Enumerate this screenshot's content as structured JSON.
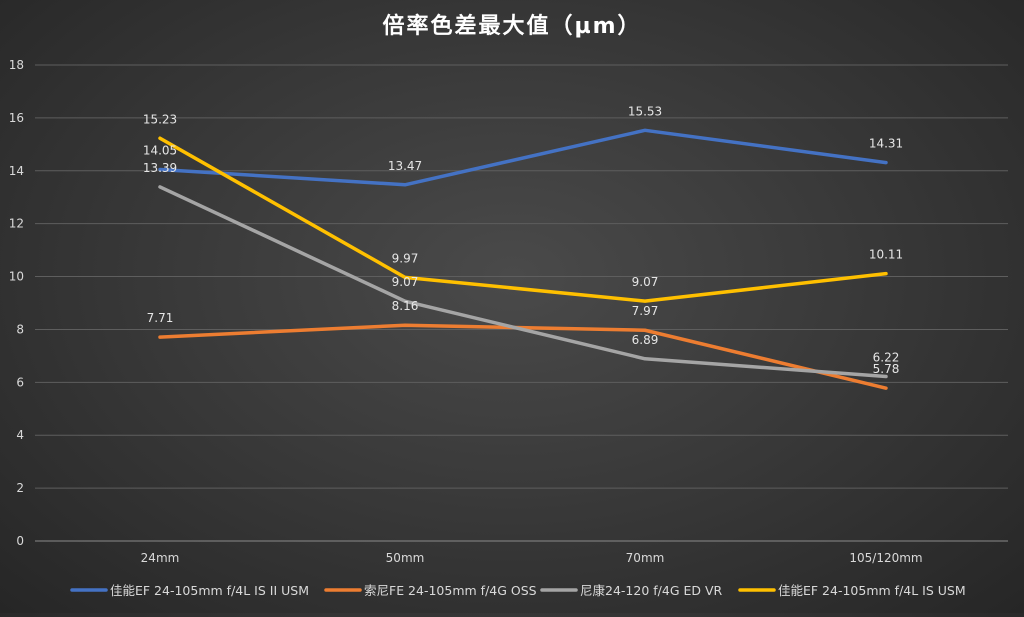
{
  "chart_data": {
    "type": "line",
    "title": "倍率色差最大值（µm）",
    "categories": [
      "24mm",
      "50mm",
      "70mm",
      "105/120mm"
    ],
    "ylim": [
      0,
      18
    ],
    "yticks": [
      0,
      2,
      4,
      6,
      8,
      10,
      12,
      14,
      16,
      18
    ],
    "grid": true,
    "legend_position": "bottom",
    "series": [
      {
        "name": "佳能EF 24-105mm f/4L IS II USM",
        "color": "#4472C4",
        "values": [
          14.05,
          13.47,
          15.53,
          14.31
        ]
      },
      {
        "name": "索尼FE 24-105mm f/4G OSS",
        "color": "#ED7D31",
        "values": [
          7.71,
          8.16,
          7.97,
          5.78
        ]
      },
      {
        "name": "尼康24-120 f/4G ED VR",
        "color": "#A5A5A5",
        "values": [
          13.39,
          9.07,
          6.89,
          6.22
        ]
      },
      {
        "name": "佳能EF 24-105mm f/4L IS  USM",
        "color": "#FFC000",
        "values": [
          15.23,
          9.97,
          9.07,
          10.11
        ]
      }
    ]
  }
}
